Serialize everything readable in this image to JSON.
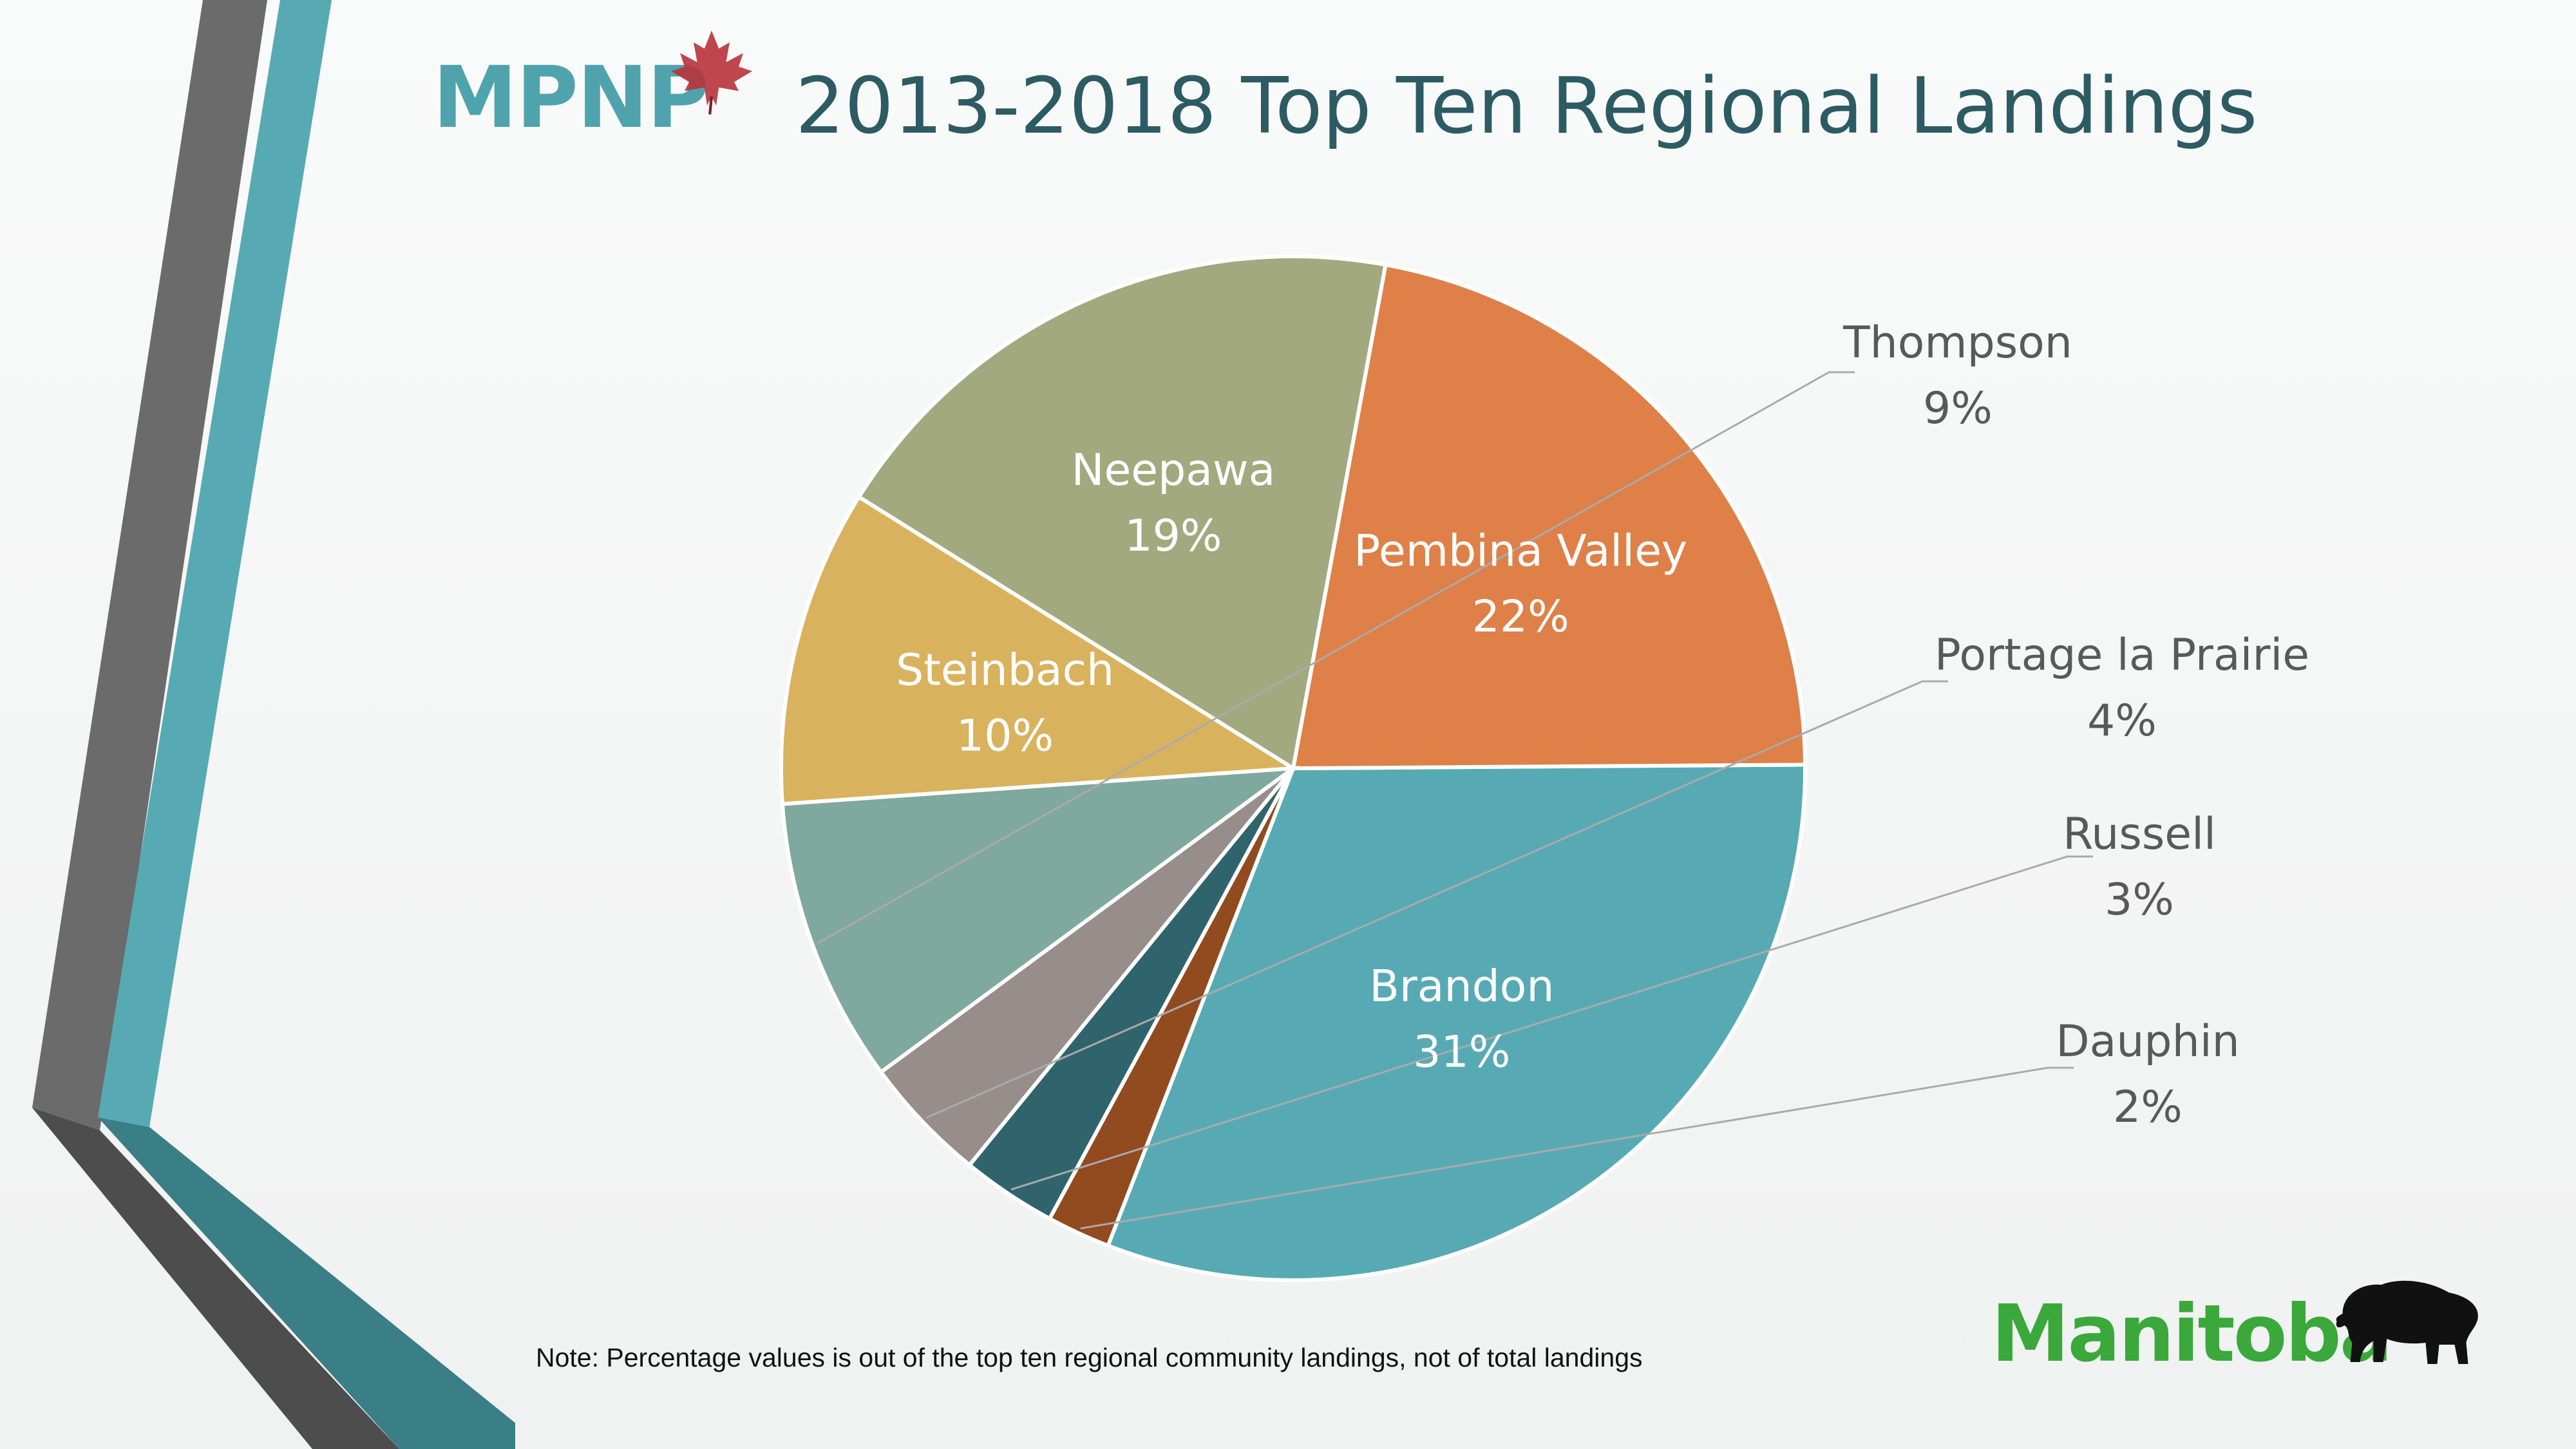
{
  "logo": {
    "text": "MPNP",
    "icon": "maple-leaf-icon"
  },
  "title": "2013-2018 Top Ten Regional Landings",
  "note": "Note: Percentage values is out of the top ten regional community landings, not of total landings",
  "footer_logo": {
    "text": "Manitoba",
    "icon": "bison-icon"
  },
  "colors": {
    "title": "#2d5b63",
    "accent_teal": "#57aab3",
    "accent_gray": "#6b6b6b",
    "manitoba_green": "#3aa83a"
  },
  "chart_data": {
    "type": "pie",
    "title": "2013-2018 Top Ten Regional Landings",
    "slices": [
      {
        "name": "Brandon",
        "label": "31%",
        "value": 31,
        "color": "#57aab3",
        "label_position": "inside"
      },
      {
        "name": "Pembina Valley",
        "label": "22%",
        "value": 22,
        "color": "#de8048",
        "label_position": "inside"
      },
      {
        "name": "Neepawa",
        "label": "19%",
        "value": 19,
        "color": "#a3a97f",
        "label_position": "inside"
      },
      {
        "name": "Steinbach",
        "label": "10%",
        "value": 10,
        "color": "#d9b25e",
        "label_position": "inside"
      },
      {
        "name": "Thompson",
        "label": "9%",
        "value": 9,
        "color": "#7fa89f",
        "label_position": "outside"
      },
      {
        "name": "Portage la Prairie",
        "label": "4%",
        "value": 4,
        "color": "#978d8b",
        "label_position": "outside"
      },
      {
        "name": "Russell",
        "label": "3%",
        "value": 3,
        "color": "#30646d",
        "label_position": "outside"
      },
      {
        "name": "Dauphin",
        "label": "2%",
        "value": 2,
        "color": "#924a1f",
        "label_position": "outside"
      }
    ]
  }
}
